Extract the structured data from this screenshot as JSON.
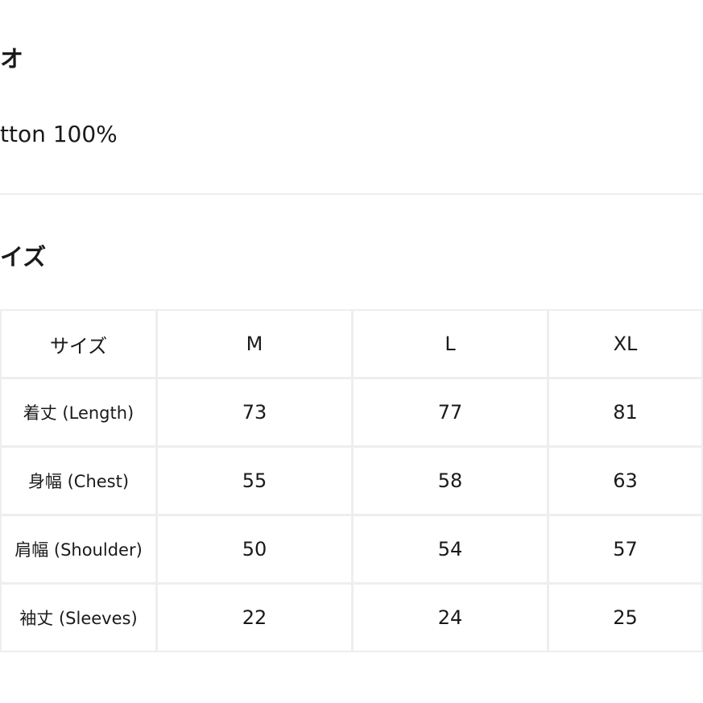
{
  "section1": {
    "heading": "オ",
    "value": "tton 100%"
  },
  "section2": {
    "heading": "イズ"
  },
  "table": {
    "headers": [
      "サイズ",
      "M",
      "L",
      "XL"
    ],
    "rows": [
      [
        "着丈 (Length)",
        "73",
        "77",
        "81"
      ],
      [
        "身幅 (Chest)",
        "55",
        "58",
        "63"
      ],
      [
        "肩幅 (Shoulder)",
        "50",
        "54",
        "57"
      ],
      [
        "袖丈 (Sleeves)",
        "22",
        "24",
        "25"
      ]
    ]
  }
}
